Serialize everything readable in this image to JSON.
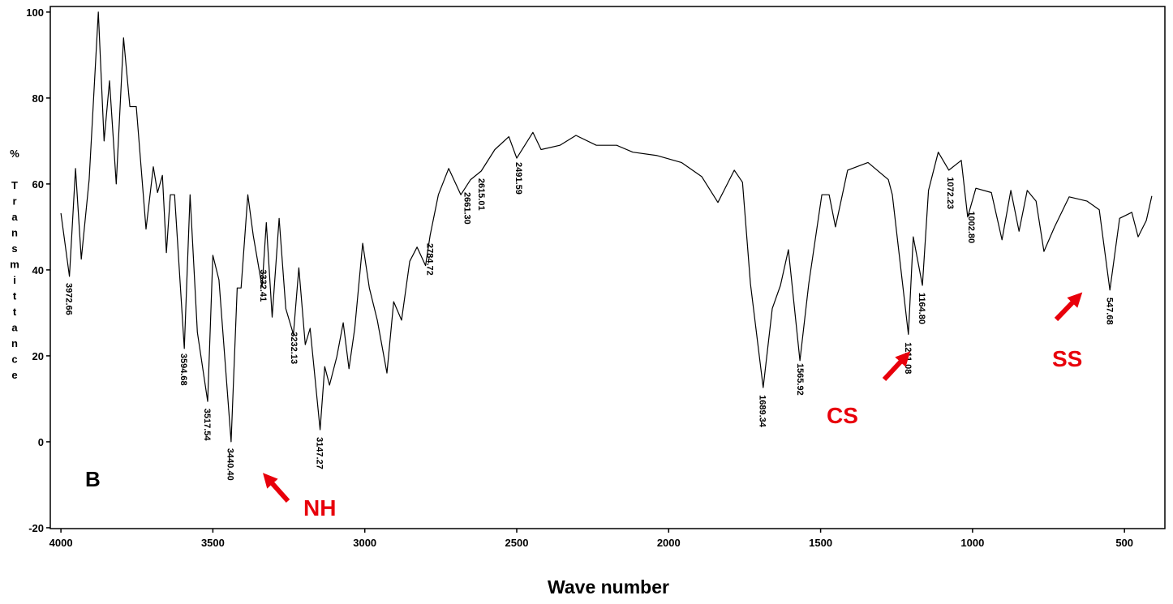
{
  "chart_data": {
    "type": "line",
    "x_label": "Wave number",
    "y_label": "% Transmittance",
    "xlim": [
      4035,
      367
    ],
    "ylim": [
      -20.2,
      101.3
    ],
    "xticks": [
      4000,
      3500,
      3000,
      2500,
      2000,
      1500,
      1000,
      500
    ],
    "yticks": [
      100,
      80,
      60,
      40,
      20,
      0,
      -20
    ],
    "color": "#000000",
    "x": [
      4000,
      3972,
      3952,
      3933,
      3907,
      3877,
      3858,
      3840,
      3818,
      3794,
      3773,
      3752,
      3720,
      3696,
      3682,
      3666,
      3653,
      3640,
      3626,
      3594,
      3575,
      3551,
      3517,
      3500,
      3480,
      3440,
      3420,
      3407,
      3385,
      3367,
      3338,
      3324,
      3305,
      3282,
      3260,
      3235,
      3217,
      3196,
      3180,
      3147,
      3132,
      3116,
      3092,
      3071,
      3052,
      3033,
      3007,
      2985,
      2959,
      2927,
      2905,
      2879,
      2852,
      2828,
      2800,
      2785,
      2758,
      2724,
      2684,
      2652,
      2617,
      2572,
      2526,
      2500,
      2447,
      2420,
      2358,
      2305,
      2238,
      2171,
      2118,
      2038,
      1958,
      1891,
      1838,
      1784,
      1757,
      1731,
      1689,
      1659,
      1632,
      1606,
      1568,
      1539,
      1496,
      1472,
      1451,
      1411,
      1344,
      1277,
      1264,
      1211,
      1195,
      1165,
      1145,
      1113,
      1078,
      1037,
      1016,
      989,
      938,
      903,
      874,
      847,
      820,
      791,
      765,
      730,
      682,
      623,
      583,
      548,
      516,
      476,
      455,
      428,
      410
    ],
    "values": [
      53.2,
      38.5,
      63.6,
      42.5,
      61,
      100,
      70,
      84,
      60,
      94,
      78,
      78,
      49.5,
      64,
      58,
      62,
      44,
      57.5,
      57.5,
      21.7,
      57.5,
      25.5,
      9.4,
      43.4,
      37.7,
      0,
      35.8,
      35.8,
      57.5,
      48,
      36,
      51,
      29,
      52,
      31,
      25,
      40.5,
      22.6,
      26.4,
      2.8,
      17.5,
      13.2,
      19.8,
      27.7,
      17,
      26.4,
      46.2,
      35.8,
      28.3,
      16,
      32.6,
      28.3,
      42,
      45.3,
      41,
      48,
      57.5,
      63.6,
      57.5,
      61,
      63,
      68,
      71,
      66,
      72,
      68,
      69,
      71.3,
      69,
      69,
      67.4,
      66.6,
      65,
      61.7,
      55.7,
      63.2,
      60.4,
      36.8,
      12.6,
      31,
      36.4,
      44.7,
      18.9,
      36.8,
      57.5,
      57.5,
      50,
      63.2,
      65,
      61,
      57.5,
      25,
      47.7,
      36.4,
      58.5,
      67.4,
      63.2,
      65.5,
      52.3,
      59,
      58,
      47,
      58.5,
      49,
      58.5,
      56,
      44.3,
      50,
      57,
      56,
      54,
      35.3,
      52,
      53.4,
      47.7,
      51.5,
      57.2
    ],
    "peak_labels": [
      {
        "x": 3972.66,
        "label": "3972.66"
      },
      {
        "x": 3594.68,
        "label": "3594.68"
      },
      {
        "x": 3517.54,
        "label": "3517.54"
      },
      {
        "x": 3440.4,
        "label": "3440.40"
      },
      {
        "x": 3332.41,
        "label": "3332.41"
      },
      {
        "x": 3232.13,
        "label": "3232.13"
      },
      {
        "x": 3147.27,
        "label": "3147.27"
      },
      {
        "x": 2784.72,
        "label": "2784.72"
      },
      {
        "x": 2661.3,
        "label": "2661.30"
      },
      {
        "x": 2615.01,
        "label": "2615.01"
      },
      {
        "x": 2491.59,
        "label": "2491.59"
      },
      {
        "x": 1689.34,
        "label": "1689.34"
      },
      {
        "x": 1565.92,
        "label": "1565.92"
      },
      {
        "x": 1211.08,
        "label": "1211.08"
      },
      {
        "x": 1164.8,
        "label": "1164.80"
      },
      {
        "x": 1072.23,
        "label": "1072.23"
      },
      {
        "x": 1002.8,
        "label": "1002.80"
      },
      {
        "x": 547.68,
        "label": "547.68"
      }
    ],
    "annotations": [
      {
        "text": "B",
        "color": "#000000"
      },
      {
        "text": "NH",
        "color": "#e8000b"
      },
      {
        "text": "CS",
        "color": "#e8000b"
      },
      {
        "text": "SS",
        "color": "#e8000b"
      }
    ]
  }
}
